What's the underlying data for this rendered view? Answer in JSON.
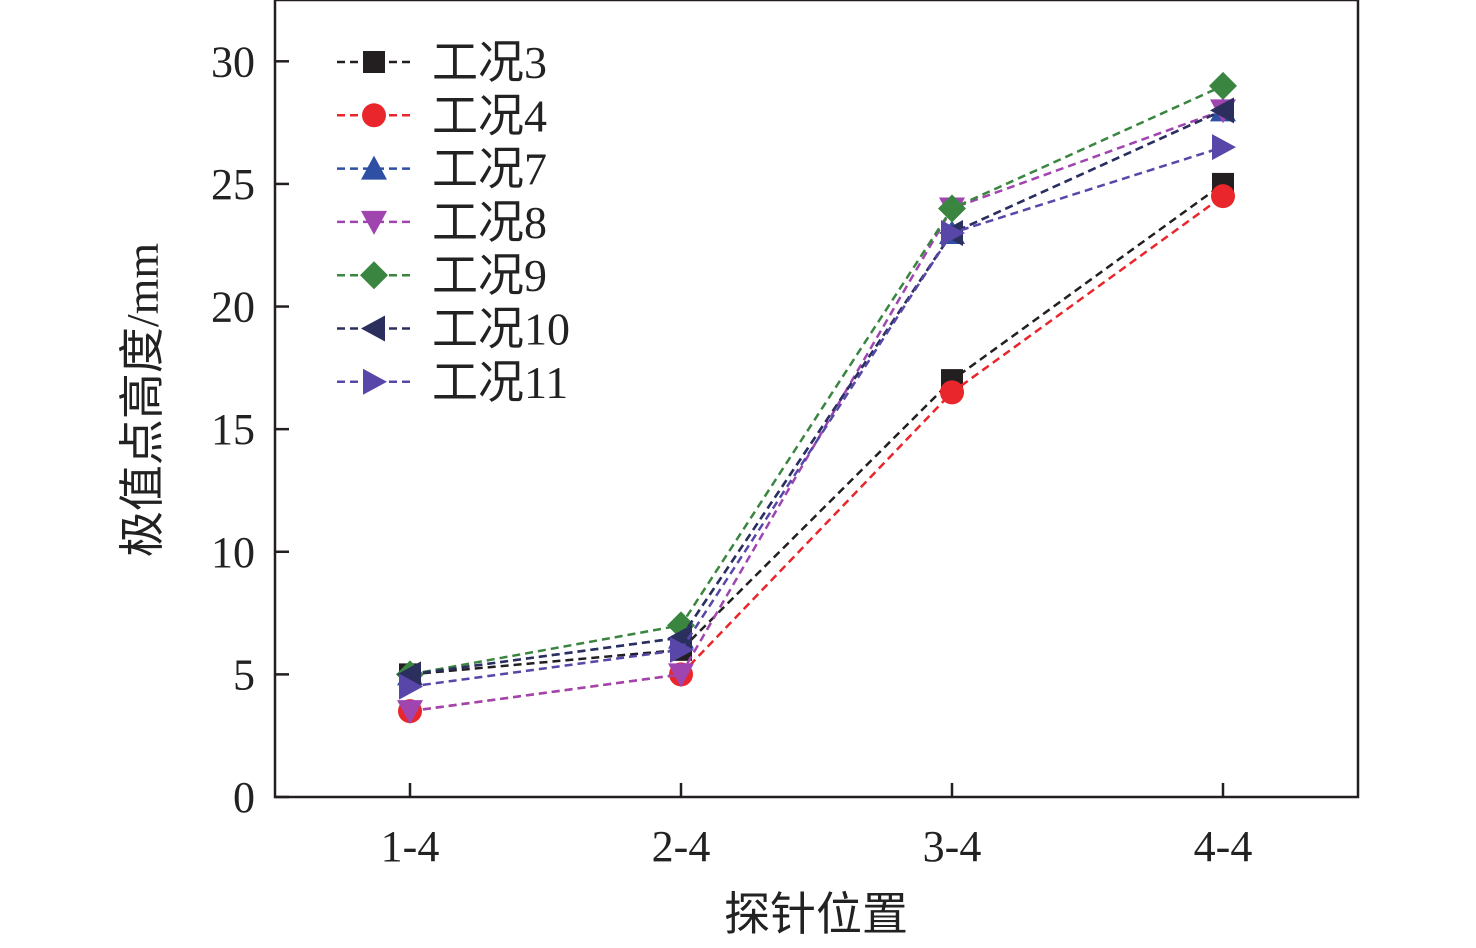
{
  "chart_data": {
    "type": "line",
    "title": "",
    "xlabel": "探针位置",
    "ylabel": "极值点高度/mm",
    "categories": [
      "1-4",
      "2-4",
      "3-4",
      "4-4"
    ],
    "ylim": [
      0,
      32.5
    ],
    "yticks": [
      0,
      5,
      10,
      15,
      20,
      25,
      30
    ],
    "grid": false,
    "legend_position": "top-left",
    "series": [
      {
        "name": "工况3",
        "values": [
          5,
          6,
          17,
          25
        ],
        "color": "#231f20",
        "marker": "square"
      },
      {
        "name": "工况4",
        "values": [
          3.5,
          5,
          16.5,
          24.5
        ],
        "color": "#e8262b",
        "marker": "circle"
      },
      {
        "name": "工况7",
        "values": [
          5,
          6.5,
          23,
          28
        ],
        "color": "#2e4fa3",
        "marker": "triangle-up"
      },
      {
        "name": "工况8",
        "values": [
          3.5,
          5,
          24,
          28
        ],
        "color": "#a045b0",
        "marker": "triangle-down"
      },
      {
        "name": "工况9",
        "values": [
          5,
          7,
          24,
          29
        ],
        "color": "#3a8540",
        "marker": "diamond"
      },
      {
        "name": "工况10",
        "values": [
          5,
          6.5,
          23,
          28
        ],
        "color": "#2b2f5e",
        "marker": "triangle-left"
      },
      {
        "name": "工况11",
        "values": [
          4.5,
          6,
          23,
          26.5
        ],
        "color": "#5846a8",
        "marker": "triangle-right"
      }
    ]
  }
}
